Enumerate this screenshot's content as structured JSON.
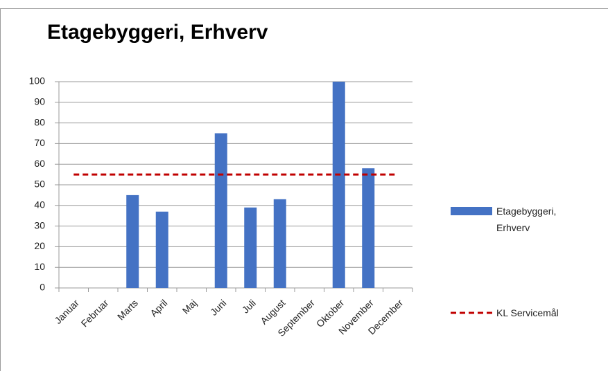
{
  "chart_data": {
    "type": "bar",
    "title": "Etagebyggeri, Erhverv",
    "categories": [
      "Januar",
      "Februar",
      "Marts",
      "April",
      "Maj",
      "Juni",
      "Juli",
      "August",
      "September",
      "Oktober",
      "November",
      "December"
    ],
    "series": [
      {
        "name": "Etagebyggeri, Erhverv",
        "type": "bar",
        "color": "#4472c4",
        "values": [
          null,
          null,
          45,
          37,
          null,
          75,
          39,
          43,
          null,
          100,
          58,
          null
        ]
      },
      {
        "name": "KL Servicemål",
        "type": "line",
        "color": "#c00000",
        "dashed": true,
        "values": [
          55,
          55,
          55,
          55,
          55,
          55,
          55,
          55,
          55,
          55,
          55,
          55
        ]
      }
    ],
    "ylim": [
      0,
      100
    ],
    "yticks": [
      0,
      10,
      20,
      30,
      40,
      50,
      60,
      70,
      80,
      90,
      100
    ],
    "grid": true,
    "legend": "right"
  }
}
